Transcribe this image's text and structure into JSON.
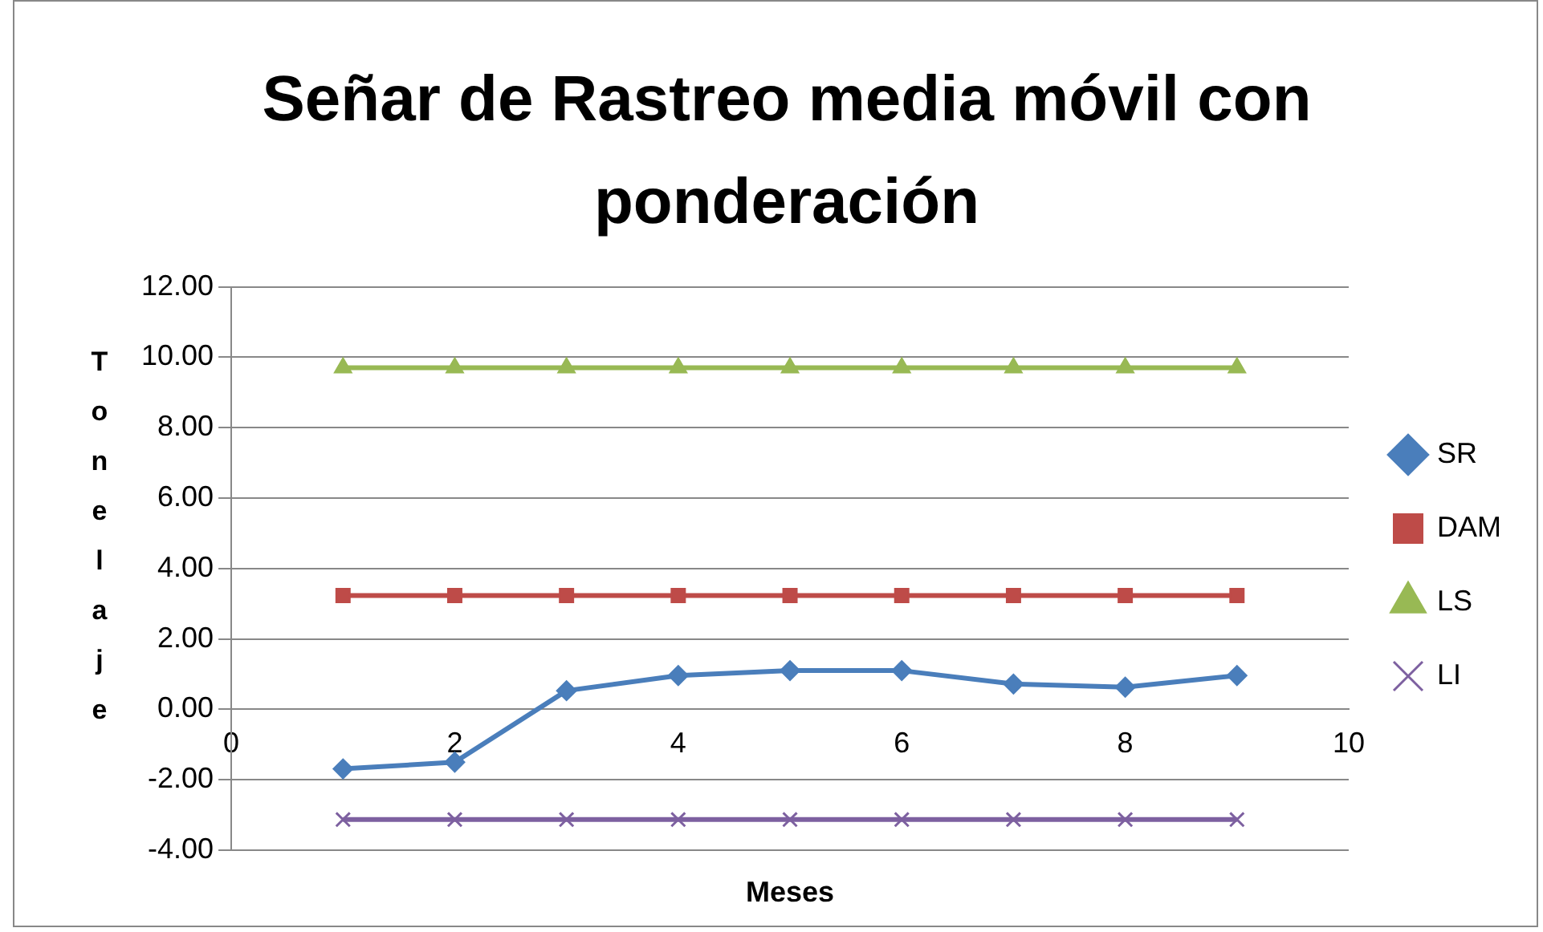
{
  "chart_data": {
    "type": "line",
    "title": "Señar de Rastreo media móvil con ponderación",
    "xlabel": "Meses",
    "ylabel": "Tonelaje",
    "x": [
      1,
      2,
      3,
      4,
      5,
      6,
      7,
      8,
      9
    ],
    "series": [
      {
        "name": "SR",
        "color": "#4a7ebb",
        "marker": "diamond",
        "values": [
          -1.69,
          -1.5,
          0.53,
          0.96,
          1.1,
          1.1,
          0.72,
          0.63,
          0.96
        ]
      },
      {
        "name": "DAM",
        "color": "#be4b48",
        "marker": "square",
        "values": [
          3.23,
          3.23,
          3.23,
          3.23,
          3.23,
          3.23,
          3.23,
          3.23,
          3.23
        ]
      },
      {
        "name": "LS",
        "color": "#98b954",
        "marker": "triangle",
        "values": [
          9.7,
          9.7,
          9.7,
          9.7,
          9.7,
          9.7,
          9.7,
          9.7,
          9.7
        ]
      },
      {
        "name": "LI",
        "color": "#7d60a0",
        "marker": "cross",
        "values": [
          -3.13,
          -3.13,
          -3.13,
          -3.13,
          -3.13,
          -3.13,
          -3.13,
          -3.13,
          -3.13
        ]
      }
    ],
    "xlim": [
      0,
      10
    ],
    "xticks": [
      0,
      2,
      4,
      6,
      8,
      10
    ],
    "ylim": [
      -4,
      12
    ],
    "yticks": [
      {
        "value": -4,
        "label": "-4.00"
      },
      {
        "value": -2,
        "label": "-2.00"
      },
      {
        "value": 0,
        "label": "0.00"
      },
      {
        "value": 2,
        "label": "2.00"
      },
      {
        "value": 4,
        "label": "4.00"
      },
      {
        "value": 6,
        "label": "6.00"
      },
      {
        "value": 8,
        "label": "8.00"
      },
      {
        "value": 10,
        "label": "10.00"
      },
      {
        "value": 12,
        "label": "12.00"
      }
    ],
    "grid": "y",
    "legend": "right"
  }
}
